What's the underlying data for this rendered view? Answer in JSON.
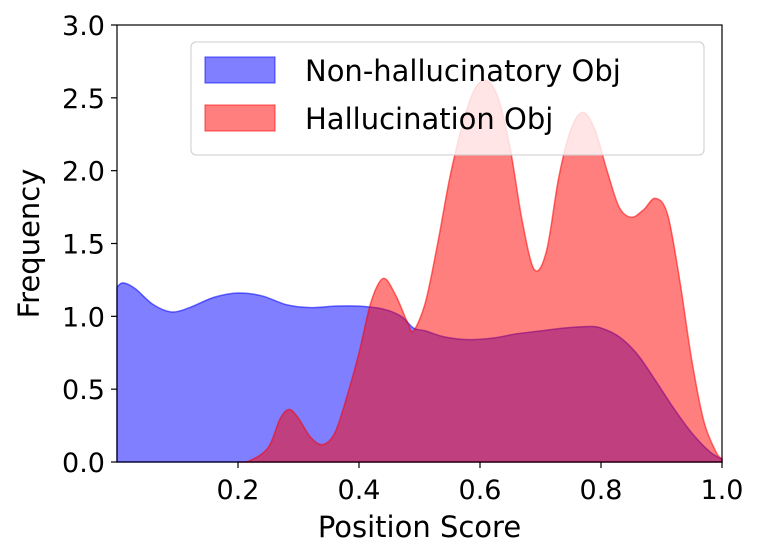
{
  "chart_data": {
    "type": "area",
    "xlabel": "Position Score",
    "ylabel": "Frequency",
    "xlim": [
      0.0,
      1.0
    ],
    "ylim": [
      0.0,
      3.0
    ],
    "x_ticks": [
      "0.2",
      "0.4",
      "0.6",
      "0.8",
      "1.0"
    ],
    "y_ticks": [
      "0.0",
      "0.5",
      "1.0",
      "1.5",
      "2.0",
      "2.5",
      "3.0"
    ],
    "x_tick_values": [
      0.2,
      0.4,
      0.6,
      0.8,
      1.0
    ],
    "y_tick_values": [
      0.0,
      0.5,
      1.0,
      1.5,
      2.0,
      2.5,
      3.0
    ],
    "grid": false,
    "legend_position": "top-right",
    "series": [
      {
        "name": "Non-hallucinatory Obj",
        "color": "#0000ff",
        "opacity": 0.5,
        "points": [
          [
            0.0,
            1.2
          ],
          [
            0.01,
            1.23
          ],
          [
            0.03,
            1.19
          ],
          [
            0.06,
            1.08
          ],
          [
            0.09,
            1.03
          ],
          [
            0.12,
            1.06
          ],
          [
            0.16,
            1.13
          ],
          [
            0.2,
            1.16
          ],
          [
            0.24,
            1.14
          ],
          [
            0.28,
            1.08
          ],
          [
            0.32,
            1.06
          ],
          [
            0.36,
            1.07
          ],
          [
            0.4,
            1.07
          ],
          [
            0.44,
            1.05
          ],
          [
            0.47,
            1.0
          ],
          [
            0.49,
            0.92
          ],
          [
            0.51,
            0.9
          ],
          [
            0.54,
            0.86
          ],
          [
            0.58,
            0.84
          ],
          [
            0.62,
            0.85
          ],
          [
            0.66,
            0.88
          ],
          [
            0.7,
            0.9
          ],
          [
            0.74,
            0.92
          ],
          [
            0.78,
            0.93
          ],
          [
            0.8,
            0.92
          ],
          [
            0.83,
            0.86
          ],
          [
            0.86,
            0.74
          ],
          [
            0.89,
            0.56
          ],
          [
            0.92,
            0.37
          ],
          [
            0.95,
            0.2
          ],
          [
            0.98,
            0.07
          ],
          [
            1.0,
            0.02
          ]
        ]
      },
      {
        "name": "Hallucination Obj",
        "color": "#ff0000",
        "opacity": 0.5,
        "points": [
          [
            0.2,
            0.0
          ],
          [
            0.22,
            0.01
          ],
          [
            0.25,
            0.1
          ],
          [
            0.27,
            0.3
          ],
          [
            0.285,
            0.36
          ],
          [
            0.3,
            0.3
          ],
          [
            0.32,
            0.17
          ],
          [
            0.34,
            0.12
          ],
          [
            0.36,
            0.2
          ],
          [
            0.38,
            0.45
          ],
          [
            0.4,
            0.75
          ],
          [
            0.42,
            1.1
          ],
          [
            0.44,
            1.26
          ],
          [
            0.46,
            1.15
          ],
          [
            0.48,
            0.96
          ],
          [
            0.49,
            0.9
          ],
          [
            0.51,
            1.1
          ],
          [
            0.53,
            1.5
          ],
          [
            0.55,
            1.95
          ],
          [
            0.57,
            2.3
          ],
          [
            0.59,
            2.55
          ],
          [
            0.61,
            2.62
          ],
          [
            0.63,
            2.5
          ],
          [
            0.65,
            2.15
          ],
          [
            0.67,
            1.65
          ],
          [
            0.69,
            1.32
          ],
          [
            0.71,
            1.45
          ],
          [
            0.73,
            1.95
          ],
          [
            0.75,
            2.28
          ],
          [
            0.77,
            2.4
          ],
          [
            0.79,
            2.28
          ],
          [
            0.81,
            2.0
          ],
          [
            0.83,
            1.75
          ],
          [
            0.85,
            1.68
          ],
          [
            0.87,
            1.73
          ],
          [
            0.89,
            1.81
          ],
          [
            0.91,
            1.7
          ],
          [
            0.93,
            1.25
          ],
          [
            0.95,
            0.7
          ],
          [
            0.97,
            0.28
          ],
          [
            0.99,
            0.07
          ],
          [
            1.0,
            0.02
          ]
        ]
      }
    ]
  }
}
